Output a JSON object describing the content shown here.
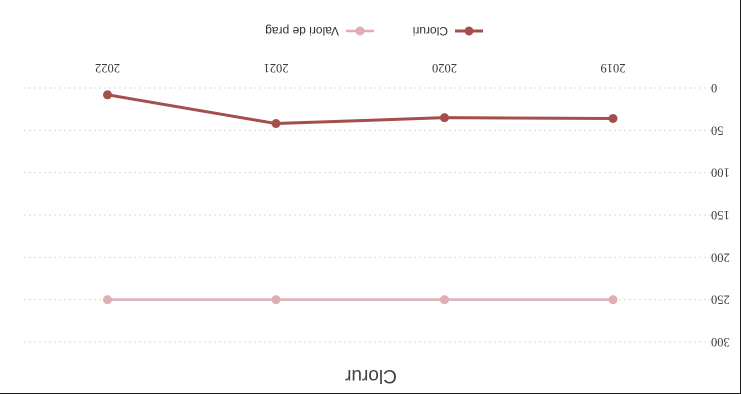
{
  "chart_data": {
    "type": "line",
    "title": "Clorur",
    "categories": [
      "2019",
      "2020",
      "2021",
      "2022"
    ],
    "series": [
      {
        "name": "Cloruri",
        "color": "#a3504c",
        "values": [
          36,
          35,
          42,
          8
        ]
      },
      {
        "name": "Valori de prag",
        "color": "#dfadb4",
        "values": [
          250,
          250,
          250,
          250
        ]
      }
    ],
    "ylim": [
      0,
      300
    ],
    "yticks": [
      0,
      50,
      100,
      150,
      200,
      250,
      300
    ],
    "ytick_labels": [
      "0",
      "50",
      "100",
      "150",
      "200",
      "250",
      "300"
    ],
    "grid": true,
    "legend": "bottom"
  }
}
